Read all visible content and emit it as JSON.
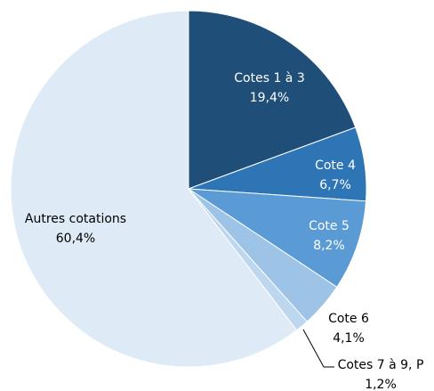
{
  "chart_data": {
    "type": "pie",
    "categories": [
      "Cotes 1 à 3",
      "Cote 4",
      "Cote 5",
      "Cote 6",
      "Cotes 7 à 9, P",
      "Autres cotations"
    ],
    "values": [
      19.4,
      6.7,
      8.2,
      4.1,
      1.2,
      60.4
    ],
    "value_labels": [
      "19,4%",
      "6,7%",
      "8,2%",
      "4,1%",
      "1,2%",
      "60,4%"
    ],
    "colors": [
      "#1f4e79",
      "#2e75b6",
      "#5b9bd5",
      "#9dc3e6",
      "#bdd7ee",
      "#deebf7"
    ]
  }
}
